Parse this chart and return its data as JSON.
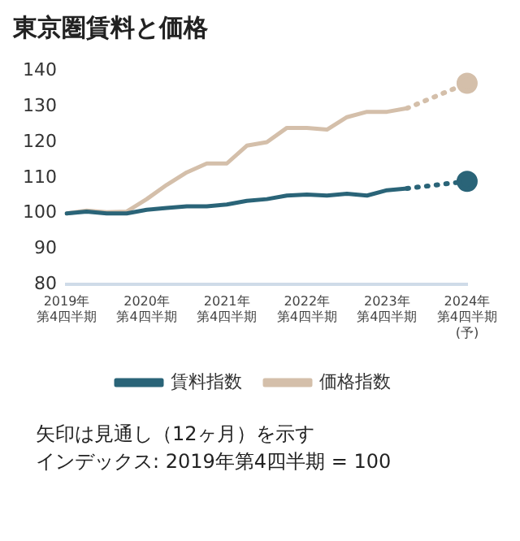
{
  "chart_data": {
    "type": "line",
    "title": "東京圏賃料と価格",
    "categories": [
      "2019年第4四半期",
      null,
      null,
      null,
      "2020年第4四半期",
      null,
      null,
      null,
      "2021年第4四半期",
      null,
      null,
      null,
      "2022年第4四半期",
      null,
      null,
      null,
      "2023年第4四半期",
      null,
      null,
      null,
      "2024年第4四半期(予)"
    ],
    "series": [
      {
        "name": "賃料指数",
        "color": "#2a6478",
        "values": [
          100,
          100.5,
          100,
          100,
          101,
          101.5,
          102,
          102,
          102.5,
          103.5,
          104,
          105,
          105.3,
          105,
          105.5,
          105,
          106.5,
          107,
          null,
          null,
          null
        ]
      },
      {
        "name": "価格指数",
        "color": "#d4bfaa",
        "values": [
          100,
          100.8,
          100.3,
          100.5,
          104,
          108,
          111.5,
          114,
          114,
          119,
          120,
          124,
          124,
          123.5,
          127,
          128.5,
          128.5,
          129.5,
          null,
          null,
          null
        ]
      },
      {
        "color": "#2a6478",
        "line_style": "dotted",
        "marker": "circle",
        "values": [
          null,
          null,
          null,
          null,
          null,
          null,
          null,
          null,
          null,
          null,
          null,
          null,
          null,
          null,
          null,
          null,
          null,
          107,
          null,
          null,
          109
        ]
      },
      {
        "color": "#d4bfaa",
        "line_style": "dotted",
        "marker": "circle",
        "values": [
          null,
          null,
          null,
          null,
          null,
          null,
          null,
          null,
          null,
          null,
          null,
          null,
          null,
          null,
          null,
          null,
          null,
          129.5,
          null,
          null,
          136.5
        ]
      }
    ],
    "ylim": [
      80,
      140
    ],
    "yticks": [
      80,
      90,
      100,
      110,
      120,
      130,
      140
    ],
    "grid": false,
    "legend": "bottom",
    "annotations": [
      "矢印は見通し（12ヶ月）を示す",
      "インデックス: 2019年第4四半期 = 100"
    ]
  }
}
